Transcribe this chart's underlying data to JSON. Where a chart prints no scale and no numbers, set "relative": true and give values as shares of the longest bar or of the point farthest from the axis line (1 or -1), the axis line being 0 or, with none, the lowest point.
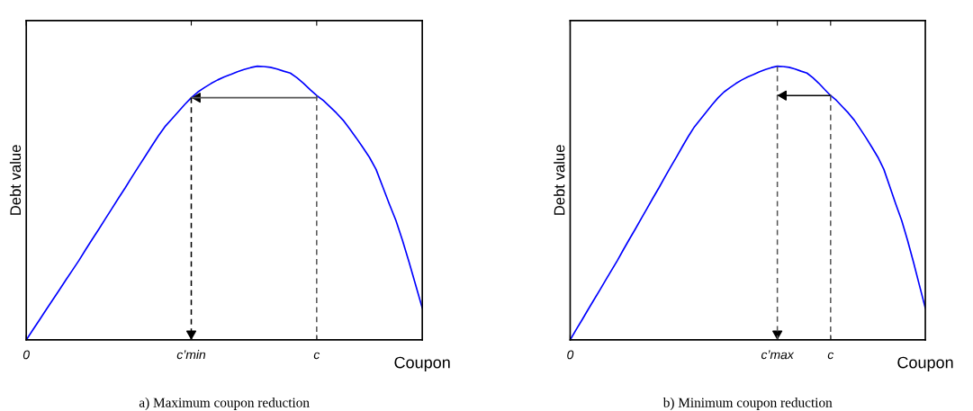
{
  "chart_data": [
    {
      "type": "line",
      "relative": true,
      "xlabel": "Coupon",
      "ylabel": "Debt value",
      "annotations": [
        "a) Maximum coupon reduction"
      ],
      "categories": [
        "0",
        null,
        null,
        null,
        null,
        null,
        null,
        null,
        null,
        null,
        null,
        null,
        null,
        null,
        null,
        null,
        null,
        null,
        null,
        null,
        null,
        null,
        null,
        null,
        null,
        "c’min",
        null,
        null,
        null,
        null,
        null,
        null,
        null,
        null,
        null,
        null,
        null,
        null,
        null,
        null,
        null,
        null,
        null,
        null,
        "c",
        null,
        null,
        null,
        null,
        null,
        null,
        null,
        null,
        null,
        null,
        null,
        null,
        null,
        null,
        null,
        null
      ],
      "series": [
        {
          "color": "#0000ff",
          "line_style": "solid",
          "values": [
            0,
            0.037,
            0.073,
            0.11,
            0.146,
            0.182,
            0.219,
            0.255,
            0.291,
            0.33,
            0.368,
            0.405,
            0.443,
            0.481,
            0.519,
            0.556,
            0.595,
            0.633,
            0.67,
            0.708,
            0.745,
            0.779,
            0.806,
            0.833,
            0.86,
            0.885,
            0.906,
            0.922,
            0.937,
            0.95,
            0.961,
            0.97,
            0.98,
            0.988,
            0.995,
            1.0,
            0.999,
            0.996,
            0.99,
            0.982,
            0.975,
            0.958,
            0.938,
            0.915,
            0.893,
            0.875,
            0.852,
            0.829,
            0.803,
            0.771,
            0.738,
            0.703,
            0.667,
            0.623,
            0.56,
            0.497,
            0.437,
            0.364,
            0.284,
            0.2,
            0.116
          ]
        },
        {
          "color": "#555555",
          "line_style": "solid",
          "values": [
            null,
            null,
            null,
            null,
            null,
            null,
            null,
            null,
            null,
            null,
            null,
            null,
            null,
            null,
            null,
            null,
            null,
            null,
            null,
            null,
            null,
            null,
            null,
            null,
            null,
            0.885,
            0.885,
            0.885,
            0.885,
            0.885,
            0.885,
            0.885,
            0.885,
            0.885,
            0.885,
            0.885,
            0.885,
            0.885,
            0.885,
            0.885,
            0.885,
            0.885,
            0.885,
            0.885,
            0.885,
            null,
            null,
            null,
            null,
            null,
            null,
            null,
            null,
            null,
            null,
            null,
            null,
            null,
            null,
            null,
            null
          ]
        }
      ],
      "ref_lines": [
        {
          "axis": "x",
          "value": "c’min",
          "color": "#000000",
          "line_style": "dashed"
        },
        {
          "axis": "x",
          "value": "c",
          "color": "#555555",
          "line_style": "dashed"
        }
      ]
    },
    {
      "type": "line",
      "relative": true,
      "xlabel": "Coupon",
      "ylabel": "Debt value",
      "annotations": [
        "b) Minimum coupon reduction"
      ],
      "categories": [
        "0",
        null,
        null,
        null,
        null,
        null,
        null,
        null,
        null,
        null,
        null,
        null,
        null,
        null,
        null,
        null,
        null,
        null,
        null,
        null,
        null,
        null,
        null,
        null,
        null,
        null,
        null,
        null,
        null,
        null,
        null,
        null,
        null,
        null,
        null,
        "c’max",
        null,
        null,
        null,
        null,
        null,
        null,
        null,
        null,
        "c",
        null,
        null,
        null,
        null,
        null,
        null,
        null,
        null,
        null,
        null,
        null,
        null,
        null,
        null,
        null,
        null
      ],
      "series": [
        {
          "color": "#0000ff",
          "line_style": "solid",
          "values": [
            0,
            0.037,
            0.073,
            0.11,
            0.146,
            0.182,
            0.219,
            0.255,
            0.291,
            0.33,
            0.368,
            0.405,
            0.443,
            0.481,
            0.519,
            0.556,
            0.595,
            0.633,
            0.67,
            0.708,
            0.745,
            0.779,
            0.806,
            0.833,
            0.86,
            0.885,
            0.906,
            0.922,
            0.937,
            0.95,
            0.961,
            0.97,
            0.98,
            0.988,
            0.995,
            1.0,
            0.999,
            0.996,
            0.99,
            0.982,
            0.975,
            0.958,
            0.938,
            0.915,
            0.893,
            0.875,
            0.852,
            0.829,
            0.803,
            0.771,
            0.738,
            0.703,
            0.667,
            0.623,
            0.56,
            0.497,
            0.437,
            0.364,
            0.284,
            0.2,
            0.116
          ]
        },
        {
          "color": "#000000",
          "line_style": "solid",
          "values": [
            null,
            null,
            null,
            null,
            null,
            null,
            null,
            null,
            null,
            null,
            null,
            null,
            null,
            null,
            null,
            null,
            null,
            null,
            null,
            null,
            null,
            null,
            null,
            null,
            null,
            null,
            null,
            null,
            null,
            null,
            null,
            null,
            null,
            null,
            null,
            0.893,
            0.893,
            0.893,
            0.893,
            0.893,
            0.893,
            0.893,
            0.893,
            0.893,
            0.893,
            null,
            null,
            null,
            null,
            null,
            null,
            null,
            null,
            null,
            null,
            null,
            null,
            null,
            null,
            null,
            null
          ]
        }
      ],
      "ref_lines": [
        {
          "axis": "x",
          "value": "c’max",
          "color": "#555555",
          "line_style": "dashed"
        },
        {
          "axis": "x",
          "value": "c",
          "color": "#555555",
          "line_style": "dashed"
        }
      ]
    }
  ]
}
